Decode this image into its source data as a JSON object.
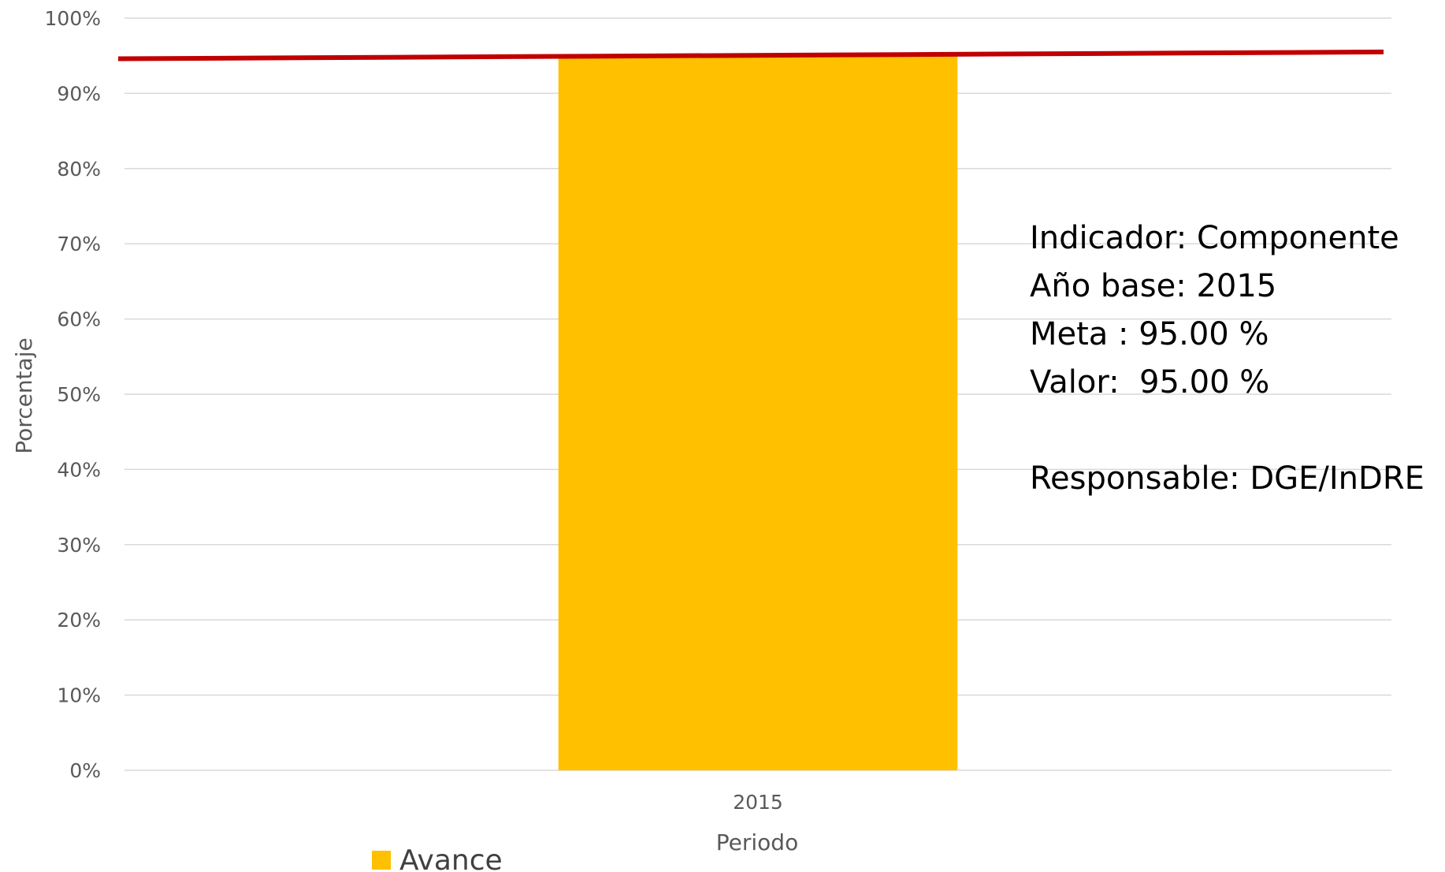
{
  "chart_data": {
    "type": "bar",
    "categories": [
      "2015"
    ],
    "series": [
      {
        "name": "Avance",
        "values": [
          95
        ],
        "color": "#FFC000"
      }
    ],
    "target_line": {
      "start": 94.6,
      "end": 95.5,
      "color": "#C00000"
    },
    "xlabel": "Periodo",
    "ylabel": "Porcentaje",
    "ylim": [
      0,
      100
    ],
    "yticks": [
      0,
      10,
      20,
      30,
      40,
      50,
      60,
      70,
      80,
      90,
      100
    ],
    "ytick_suffix": "%",
    "grid": true,
    "legend": {
      "position": "bottom-left",
      "label": "Avance"
    }
  },
  "info": {
    "indicador": "Indicador: Componente",
    "anio_base": "Año base: 2015",
    "meta": "Meta : 95.00 %",
    "valor": "Valor:  95.00 %",
    "responsable": "Responsable: DGE/InDRE"
  }
}
